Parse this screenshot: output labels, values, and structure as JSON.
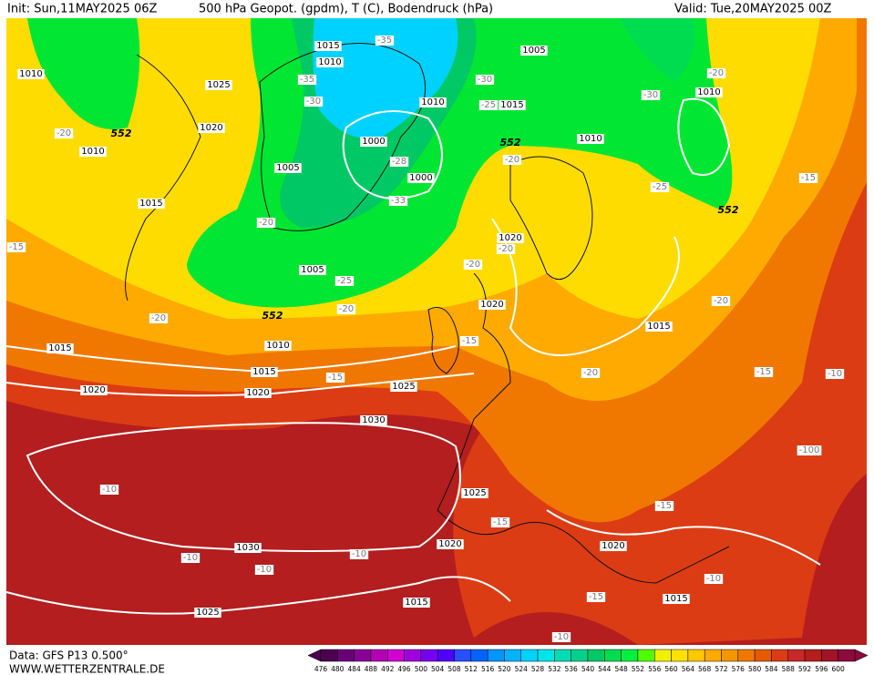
{
  "header": {
    "init": "Init: Sun,11MAY2025 06Z",
    "title": "500 hPa Geopot. (gpdm), T (C), Bodendruck (hPa)",
    "valid": "Valid: Tue,20MAY2025 00Z"
  },
  "footer": {
    "source": "Data: GFS P13 0.500°",
    "website": "WWW.WETTERZENTRALE.DE"
  },
  "map": {
    "pressure_labels": [
      "1015",
      "1010",
      "1025",
      "1010",
      "1020",
      "1010",
      "1015",
      "1000",
      "1005",
      "1000",
      "1010",
      "1015",
      "1005",
      "1010",
      "1010",
      "1020",
      "1020",
      "1015",
      "1005",
      "1010",
      "1015",
      "1020",
      "1025",
      "1015",
      "1020",
      "1030",
      "1025",
      "1020",
      "1030",
      "1025",
      "1015",
      "1020",
      "1015"
    ],
    "temperature_labels": [
      "-20",
      "-20",
      "-15",
      "-35",
      "-35",
      "-30",
      "-30",
      "-25",
      "-30",
      "-20",
      "-28",
      "-33",
      "-20",
      "-25",
      "-20",
      "-20",
      "-20",
      "-20",
      "-25",
      "-15",
      "-20",
      "-15",
      "-15",
      "-20",
      "-15",
      "-10",
      "-100",
      "-10",
      "-15",
      "-15",
      "-10",
      "-10",
      "-10",
      "-10",
      "-15",
      "-10"
    ],
    "height_labels": [
      "552",
      "552",
      "552",
      "552"
    ]
  },
  "legend": {
    "values": [
      476,
      480,
      484,
      488,
      492,
      496,
      500,
      504,
      508,
      512,
      516,
      520,
      524,
      528,
      532,
      536,
      540,
      544,
      548,
      552,
      556,
      560,
      564,
      568,
      572,
      576,
      580,
      584,
      588,
      592,
      596,
      600
    ],
    "colors": [
      "#4b0050",
      "#6a0078",
      "#8a0096",
      "#b400b4",
      "#d200d2",
      "#a000e0",
      "#7800f0",
      "#5000ff",
      "#2850ff",
      "#0064ff",
      "#0096ff",
      "#00b4ff",
      "#00d2ff",
      "#00e6e6",
      "#00dcb4",
      "#00d28c",
      "#00c864",
      "#00dc50",
      "#00f03c",
      "#50ff00",
      "#f0f000",
      "#ffe100",
      "#ffc800",
      "#ffaa00",
      "#f59600",
      "#f07800",
      "#e65a00",
      "#dc3c14",
      "#c82828",
      "#b41e1e",
      "#a01428",
      "#8c0a3c"
    ]
  }
}
